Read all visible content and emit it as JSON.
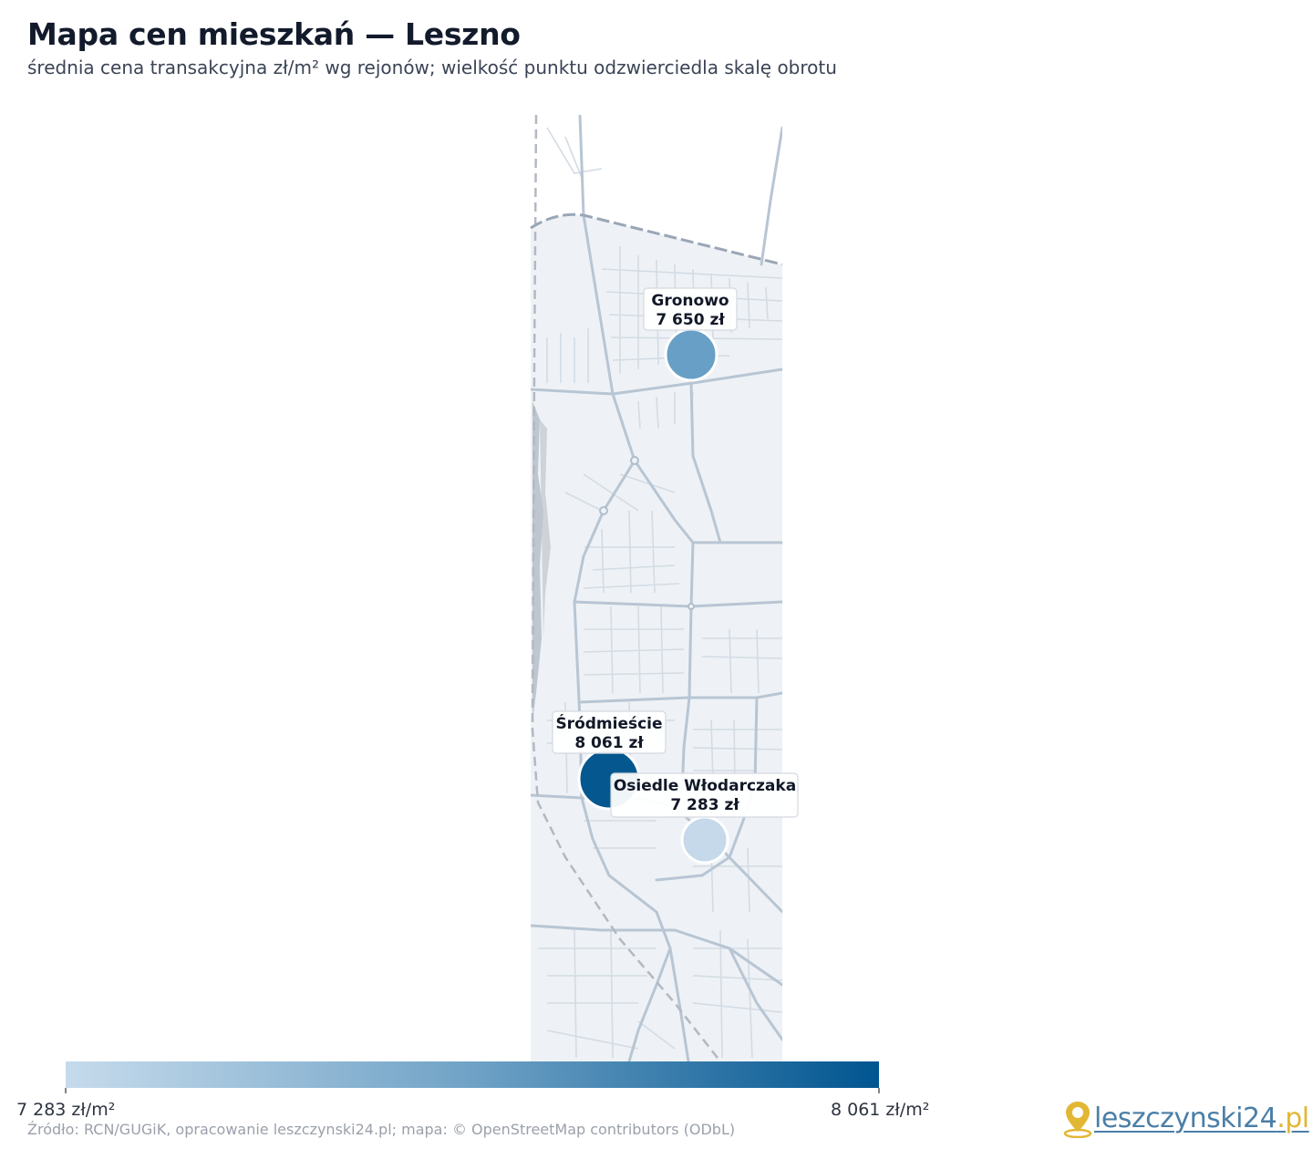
{
  "header": {
    "title": "Mapa cen mieszkań — Leszno",
    "subtitle": "średnia cena transakcyjna zł/m² wg rejonów; wielkość punktu odzwierciedla skalę obrotu"
  },
  "districts": [
    {
      "name": "Gronowo",
      "price_label": "7 650 zł",
      "price": 7650,
      "color": "#689fc6"
    },
    {
      "name": "Śródmieście",
      "price_label": "8 061 zł",
      "price": 8061,
      "color": "#04588f"
    },
    {
      "name": "Osiedle Włodarczaka",
      "price_label": "7 283 zł",
      "price": 7283,
      "color": "#c5d9ea"
    }
  ],
  "legend": {
    "min_label": "7 283 zł/m²",
    "max_label": "8 061 zł/m²",
    "color_min": "#c6dbec",
    "color_max": "#005590"
  },
  "footer": {
    "source": "Źródło: RCN/GUGiK, opracowanie leszczynski24.pl; mapa: © OpenStreetMap contributors (ODbL)",
    "logo_main": "leszczynski24",
    "logo_tld": ".pl",
    "logo_icon": "map-pin-icon"
  },
  "colors": {
    "map_area": "#eef2f6",
    "road_major": "#b8c5d3",
    "road_minor": "#d3dbe4",
    "boundary": "#9aa6b6",
    "railway": "#b3b8c1"
  }
}
